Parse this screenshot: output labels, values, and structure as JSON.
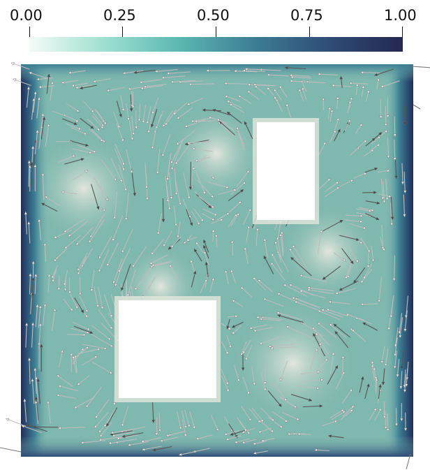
{
  "colorbar": {
    "ticks": [
      "0.00",
      "0.25",
      "0.50",
      "0.75",
      "1.00"
    ],
    "tick_values": [
      0,
      0.25,
      0.5,
      0.75,
      1.0
    ],
    "range": [
      0,
      1
    ],
    "colormap": [
      "#f4fbf7",
      "#9ee0d0",
      "#5cb8b3",
      "#3d7e94",
      "#2f4d78",
      "#232850"
    ]
  },
  "field": {
    "background_color": "#7fb8ae",
    "low_color": "#e3e6dc",
    "high_color": "#1f2e5c",
    "glyph_color": "#bdbdbd",
    "glyph_dark_color": "#555555",
    "obstacle_color": "#ffffff"
  }
}
